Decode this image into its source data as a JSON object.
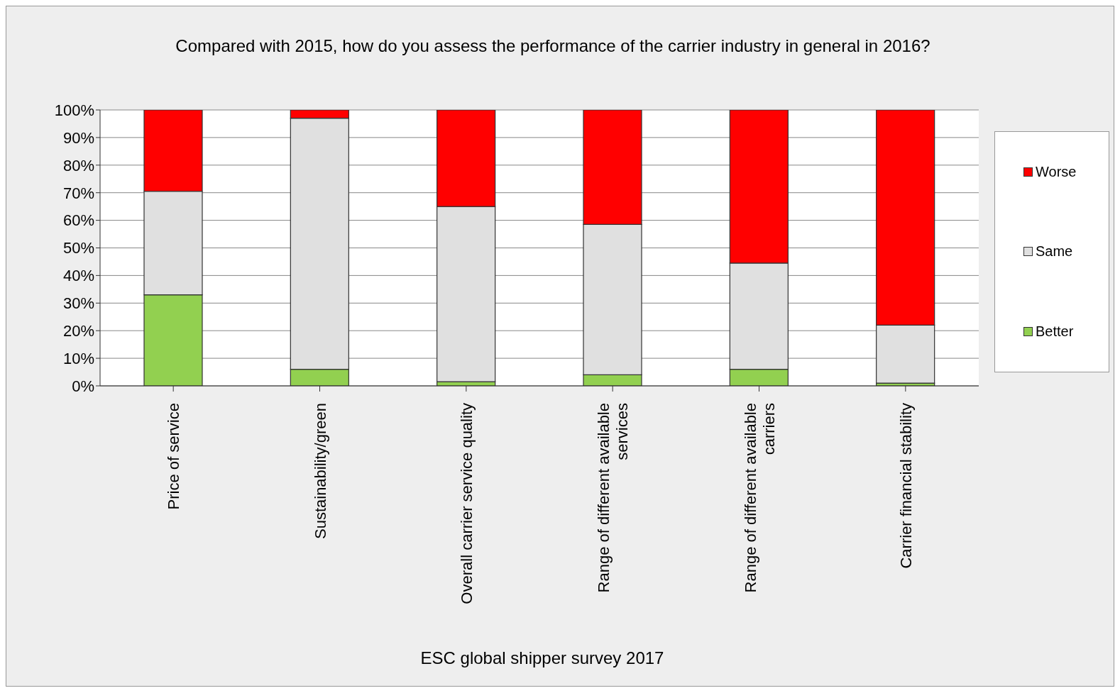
{
  "chart_data": {
    "type": "bar",
    "stacked": true,
    "title": "Compared with 2015, how do you assess the performance of the carrier industry in general in 2016?",
    "xlabel": "ESC global shipper survey 2017",
    "categories": [
      "Price of service",
      "Sustainability/green",
      "Overall carrier service quality",
      "Range of different available services",
      "Range of different available carriers",
      "Carrier financial stability"
    ],
    "series": [
      {
        "name": "Better",
        "color": "#92d050",
        "values": [
          33,
          6,
          1.5,
          4,
          6,
          1
        ]
      },
      {
        "name": "Same",
        "color": "#e0e0e0",
        "values": [
          37.5,
          91,
          63.5,
          54.5,
          38.5,
          21
        ]
      },
      {
        "name": "Worse",
        "color": "#ff0000",
        "values": [
          29.5,
          3,
          35,
          41.5,
          55.5,
          78
        ]
      }
    ],
    "ylim": [
      0,
      100
    ],
    "yticks": [
      {
        "value": 0,
        "label": "0%"
      },
      {
        "value": 10,
        "label": "10%"
      },
      {
        "value": 20,
        "label": "20%"
      },
      {
        "value": 30,
        "label": "30%"
      },
      {
        "value": 40,
        "label": "40%"
      },
      {
        "value": 50,
        "label": "50%"
      },
      {
        "value": 60,
        "label": "60%"
      },
      {
        "value": 70,
        "label": "70%"
      },
      {
        "value": 80,
        "label": "80%"
      },
      {
        "value": 90,
        "label": "90%"
      },
      {
        "value": 100,
        "label": "100%"
      }
    ],
    "grid": "y",
    "legend": "right"
  }
}
